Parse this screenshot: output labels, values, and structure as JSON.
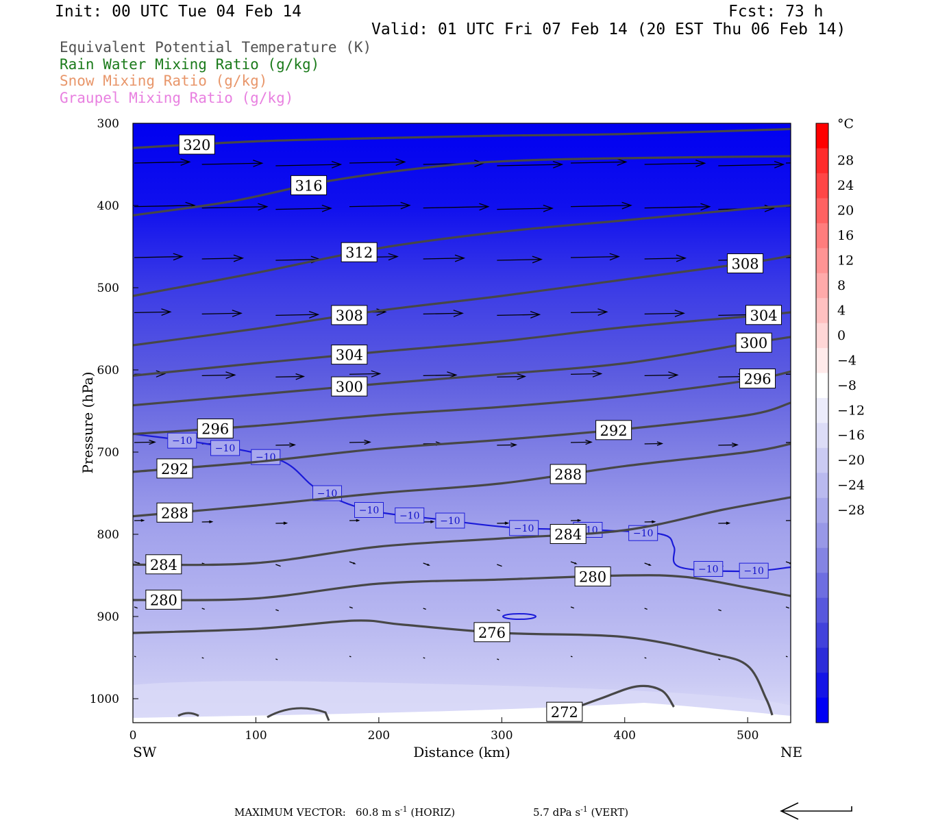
{
  "header": {
    "init": "Init: 00 UTC Tue 04 Feb 14",
    "fcst": "Fcst:   73 h",
    "valid": "Valid: 01 UTC Fri 07 Feb 14 (20 EST Thu 06 Feb 14)"
  },
  "legend": [
    {
      "label": "Equivalent Potential Temperature (K)",
      "color": "#505050"
    },
    {
      "label": "Rain Water Mixing Ratio (g/kg)",
      "color": "#1a7a1a"
    },
    {
      "label": "Snow Mixing Ratio (g/kg)",
      "color": "#e8966a"
    },
    {
      "label": "Graupel Mixing Ratio (g/kg)",
      "color": "#e880e0"
    }
  ],
  "footer": {
    "max_vector_label": "MAXIMUM VECTOR:",
    "horiz": "60.8 m s",
    "horiz_unit": "(HORIZ)",
    "vert": "5.7 dPa s",
    "vert_unit": "(VERT)",
    "exp": "-1"
  },
  "chart_data": {
    "type": "heatmap",
    "title": "Equivalent Potential Temperature (K)",
    "xlabel": "Distance (km)",
    "ylabel": "Pressure (hPa)",
    "x_ticks": [
      0,
      100,
      200,
      300,
      400,
      500
    ],
    "y_ticks": [
      300,
      400,
      500,
      600,
      700,
      800,
      900,
      1000
    ],
    "xlim": [
      0,
      535
    ],
    "ylim": [
      1030,
      300
    ],
    "x_endpoints": {
      "left": "SW",
      "right": "NE"
    },
    "colorbar": {
      "unit": "°C",
      "labels": [
        28,
        24,
        20,
        16,
        12,
        8,
        4,
        0,
        -4,
        -8,
        -12,
        -16,
        -20,
        -24,
        -28
      ],
      "colors": [
        "#ff0000",
        "#ff2b2b",
        "#ff4646",
        "#ff6262",
        "#ff7d7d",
        "#ff9494",
        "#ffaaaa",
        "#ffc0c0",
        "#ffd6d6",
        "#ffeaea",
        "#ffffff",
        "#ececfb",
        "#dcdcf7",
        "#cbcbf3",
        "#babaef",
        "#a9a9eb",
        "#9898e7",
        "#8484e3",
        "#6e6ee0",
        "#5858dd",
        "#4242db",
        "#2c2cd9",
        "#1414e6",
        "#0000f5"
      ]
    },
    "theta_e_contours": [
      {
        "value": 320,
        "points": [
          [
            0,
            330
          ],
          [
            100,
            322
          ],
          [
            200,
            318
          ],
          [
            300,
            315
          ],
          [
            400,
            313
          ],
          [
            535,
            307
          ]
        ]
      },
      {
        "value": 316,
        "points": [
          [
            0,
            412
          ],
          [
            80,
            395
          ],
          [
            160,
            370
          ],
          [
            250,
            352
          ],
          [
            320,
            345
          ],
          [
            420,
            342
          ],
          [
            535,
            340
          ]
        ]
      },
      {
        "value": 312,
        "points": [
          [
            0,
            510
          ],
          [
            100,
            482
          ],
          [
            200,
            452
          ],
          [
            300,
            432
          ],
          [
            400,
            418
          ],
          [
            500,
            404
          ],
          [
            535,
            400
          ]
        ]
      },
      {
        "value": 308,
        "points": [
          [
            0,
            570
          ],
          [
            100,
            550
          ],
          [
            200,
            528
          ],
          [
            300,
            510
          ],
          [
            400,
            490
          ],
          [
            500,
            470
          ],
          [
            535,
            461
          ]
        ]
      },
      {
        "value": 304,
        "points": [
          [
            0,
            607
          ],
          [
            100,
            592
          ],
          [
            200,
            578
          ],
          [
            300,
            565
          ],
          [
            400,
            548
          ],
          [
            500,
            535
          ],
          [
            535,
            530
          ]
        ]
      },
      {
        "value": 300,
        "points": [
          [
            0,
            643
          ],
          [
            100,
            630
          ],
          [
            200,
            617
          ],
          [
            300,
            605
          ],
          [
            400,
            592
          ],
          [
            500,
            568
          ],
          [
            535,
            560
          ]
        ]
      },
      {
        "value": 296,
        "points": [
          [
            0,
            678
          ],
          [
            100,
            668
          ],
          [
            200,
            655
          ],
          [
            300,
            645
          ],
          [
            400,
            632
          ],
          [
            500,
            613
          ],
          [
            535,
            602
          ]
        ]
      },
      {
        "value": 292,
        "points": [
          [
            0,
            724
          ],
          [
            100,
            712
          ],
          [
            200,
            696
          ],
          [
            300,
            685
          ],
          [
            400,
            672
          ],
          [
            500,
            655
          ],
          [
            535,
            640
          ]
        ]
      },
      {
        "value": 288,
        "points": [
          [
            0,
            778
          ],
          [
            100,
            765
          ],
          [
            200,
            750
          ],
          [
            300,
            738
          ],
          [
            400,
            717
          ],
          [
            500,
            700
          ],
          [
            535,
            690
          ]
        ]
      },
      {
        "value": 284,
        "points": [
          [
            0,
            837
          ],
          [
            100,
            835
          ],
          [
            200,
            815
          ],
          [
            300,
            805
          ],
          [
            400,
            795
          ],
          [
            480,
            770
          ],
          [
            535,
            755
          ]
        ]
      },
      {
        "value": 280,
        "points": [
          [
            0,
            880
          ],
          [
            100,
            878
          ],
          [
            200,
            860
          ],
          [
            300,
            855
          ],
          [
            400,
            850
          ],
          [
            450,
            852
          ],
          [
            500,
            865
          ],
          [
            535,
            875
          ]
        ]
      },
      {
        "value": 276,
        "points": [
          [
            0,
            920
          ],
          [
            100,
            915
          ],
          [
            180,
            905
          ],
          [
            220,
            910
          ],
          [
            300,
            920
          ],
          [
            400,
            925
          ],
          [
            470,
            945
          ],
          [
            500,
            960
          ],
          [
            515,
            1000
          ],
          [
            520,
            1020
          ]
        ]
      },
      {
        "value": 272,
        "points": [
          [
            340,
            1022
          ],
          [
            380,
            1000
          ],
          [
            410,
            985
          ],
          [
            430,
            990
          ],
          [
            440,
            1010
          ]
        ]
      }
    ],
    "temperature_isotherm": {
      "value": -10,
      "points": [
        [
          0,
          678
        ],
        [
          60,
          690
        ],
        [
          120,
          710
        ],
        [
          150,
          745
        ],
        [
          190,
          770
        ],
        [
          250,
          782
        ],
        [
          310,
          792
        ],
        [
          380,
          795
        ],
        [
          430,
          800
        ],
        [
          440,
          815
        ],
        [
          445,
          840
        ],
        [
          500,
          845
        ],
        [
          535,
          840
        ]
      ]
    },
    "wind_vectors": "horizontal westerly arrows decreasing in length with pressure; near-zero below 850 hPa"
  }
}
